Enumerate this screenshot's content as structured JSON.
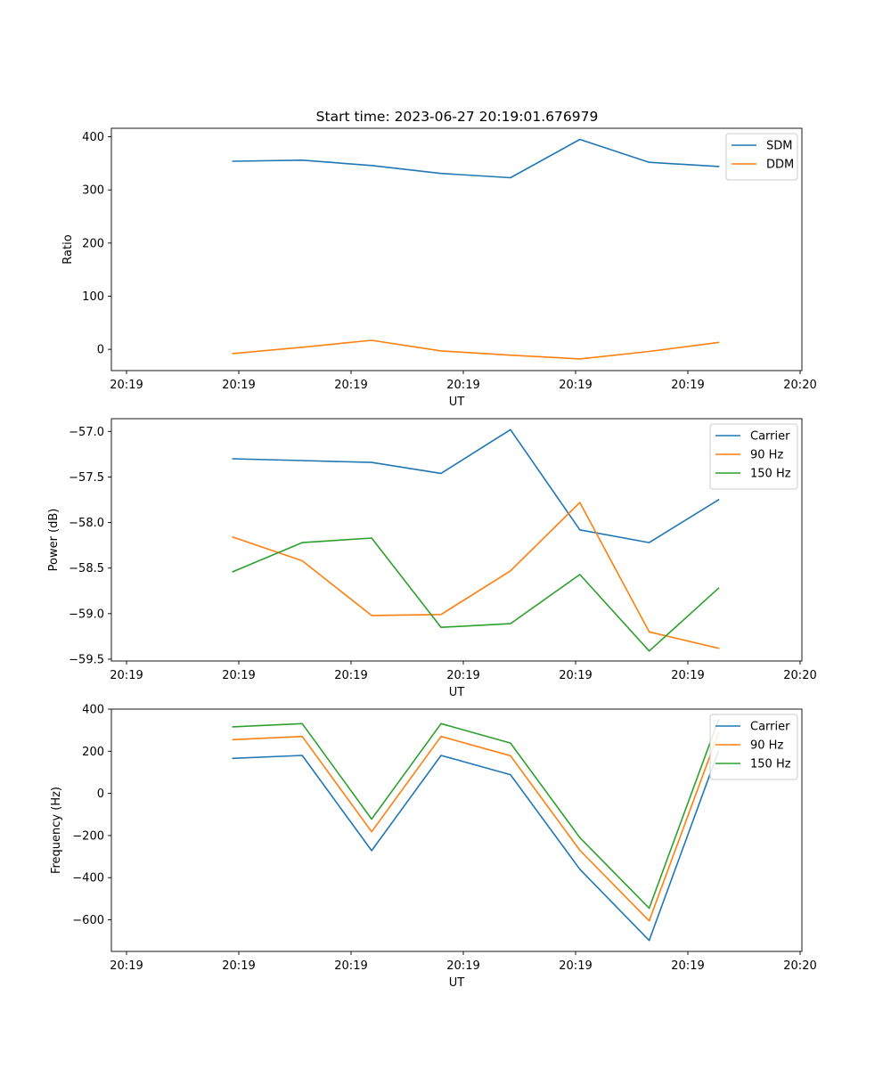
{
  "figure": {
    "title": "Start time: 2023-06-27 20:19:01.676979"
  },
  "chart_data": [
    {
      "type": "line",
      "xlabel": "UT",
      "ylabel": "Ratio",
      "x_tick_labels": [
        "20:19",
        "20:19",
        "20:19",
        "20:19",
        "20:19",
        "20:19",
        "20:20"
      ],
      "y_ticks": [
        0,
        100,
        200,
        300,
        400
      ],
      "y_tick_labels": [
        "0",
        "100",
        "200",
        "300",
        "400"
      ],
      "xlim": [
        -0.75,
        9.2
      ],
      "ylim": [
        -40,
        416
      ],
      "x": [
        1,
        2,
        3,
        4,
        5,
        6,
        7,
        8
      ],
      "legend": "upper right",
      "series": [
        {
          "name": "SDM",
          "color": "#1f77b4",
          "values": [
            354,
            356,
            346,
            331,
            323,
            395,
            352,
            344
          ]
        },
        {
          "name": "DDM",
          "color": "#ff7f0e",
          "values": [
            -8,
            4,
            17,
            -3,
            -11,
            -18,
            -4,
            13
          ]
        }
      ]
    },
    {
      "type": "line",
      "xlabel": "UT",
      "ylabel": "Power (dB)",
      "x_tick_labels": [
        "20:19",
        "20:19",
        "20:19",
        "20:19",
        "20:19",
        "20:19",
        "20:20"
      ],
      "y_ticks": [
        -59.5,
        -59.0,
        -58.5,
        -58.0,
        -57.5,
        -57.0
      ],
      "y_tick_labels": [
        "−59.5",
        "−59.0",
        "−58.5",
        "−58.0",
        "−57.5",
        "−57.0"
      ],
      "xlim": [
        -0.75,
        9.2
      ],
      "ylim": [
        -59.52,
        -56.86
      ],
      "x": [
        1,
        2,
        3,
        4,
        5,
        6,
        7,
        8
      ],
      "legend": "upper right",
      "series": [
        {
          "name": "Carrier",
          "color": "#1f77b4",
          "values": [
            -57.3,
            -57.32,
            -57.34,
            -57.46,
            -56.98,
            -58.08,
            -58.22,
            -57.75
          ]
        },
        {
          "name": "90 Hz",
          "color": "#ff7f0e",
          "values": [
            -58.16,
            -58.42,
            -59.02,
            -59.01,
            -58.53,
            -57.78,
            -59.2,
            -59.38
          ]
        },
        {
          "name": "150 Hz",
          "color": "#2ca02c",
          "values": [
            -58.54,
            -58.22,
            -58.17,
            -59.15,
            -59.11,
            -58.57,
            -59.41,
            -58.72
          ]
        }
      ]
    },
    {
      "type": "line",
      "xlabel": "UT",
      "ylabel": "Frequency (Hz)",
      "x_tick_labels": [
        "20:19",
        "20:19",
        "20:19",
        "20:19",
        "20:19",
        "20:19",
        "20:20"
      ],
      "y_ticks": [
        -600,
        -400,
        -200,
        0,
        200,
        400
      ],
      "y_tick_labels": [
        "−600",
        "−400",
        "−200",
        "0",
        "200",
        "400"
      ],
      "xlim": [
        -0.75,
        9.2
      ],
      "ylim": [
        -750,
        400
      ],
      "x": [
        1,
        2,
        3,
        4,
        5,
        6,
        7,
        8
      ],
      "legend": "upper right",
      "series": [
        {
          "name": "Carrier",
          "color": "#1f77b4",
          "values": [
            166,
            180,
            -272,
            180,
            89,
            -360,
            -698,
            202
          ]
        },
        {
          "name": "90 Hz",
          "color": "#ff7f0e",
          "values": [
            255,
            270,
            -182,
            270,
            179,
            -270,
            -605,
            289
          ]
        },
        {
          "name": "150 Hz",
          "color": "#2ca02c",
          "values": [
            316,
            331,
            -122,
            331,
            239,
            -210,
            -545,
            350
          ]
        }
      ]
    }
  ]
}
